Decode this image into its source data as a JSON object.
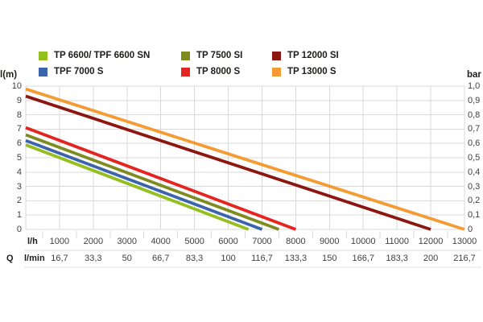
{
  "legend": {
    "items": [
      {
        "label": "TP 6600/ TPF 6600 SN",
        "color": "#93c01f"
      },
      {
        "label": "TPF 7000 S",
        "color": "#3c64ad"
      },
      {
        "label": "TP 7500 SI",
        "color": "#7d8b1f"
      },
      {
        "label": "TP 8000 S",
        "color": "#e5231f"
      },
      {
        "label": "TP 12000 SI",
        "color": "#8c1711"
      },
      {
        "label": "TP 13000 S",
        "color": "#f59b33"
      }
    ]
  },
  "chart_data": {
    "type": "line",
    "title": "",
    "grid": true,
    "grid_color": "#d9d9d9",
    "y_axis_left": {
      "label": "l(m)",
      "ticks": [
        "10",
        "9",
        "8",
        "7",
        "6",
        "5",
        "4",
        "3",
        "2",
        "1",
        "0"
      ],
      "range": [
        0,
        10
      ]
    },
    "y_axis_right": {
      "label": "bar",
      "ticks": [
        "1,0",
        "0,9",
        "0,8",
        "0,7",
        "0,6",
        "0,5",
        "0,4",
        "0,3",
        "0,2",
        "0,1",
        "0"
      ],
      "range": [
        0,
        1
      ]
    },
    "x_axis": {
      "unit_top": "l/h",
      "q_label": "Q",
      "unit_bottom": "l/min",
      "range_lh": [
        0,
        13000
      ],
      "ticks_lh": [
        "1000",
        "2000",
        "3000",
        "4000",
        "5000",
        "6000",
        "7000",
        "8000",
        "9000",
        "10000",
        "11000",
        "12000",
        "13000"
      ],
      "ticks_lmin": [
        "16,7",
        "33,3",
        "50",
        "66,7",
        "83,3",
        "100",
        "116,7",
        "133,3",
        "150",
        "166,7",
        "183,3",
        "200",
        "216,7"
      ]
    },
    "series": [
      {
        "name": "TP 13000 S",
        "color": "#f59b33",
        "max_head_m": 9.8,
        "max_flow_lh": 13000,
        "points": [
          [
            0,
            9.8
          ],
          [
            13000,
            0
          ]
        ]
      },
      {
        "name": "TP 12000 SI",
        "color": "#8c1711",
        "max_head_m": 9.3,
        "max_flow_lh": 12000,
        "points": [
          [
            0,
            9.3
          ],
          [
            12000,
            0
          ]
        ]
      },
      {
        "name": "TP 8000 S",
        "color": "#e5231f",
        "max_head_m": 7.1,
        "max_flow_lh": 8000,
        "points": [
          [
            0,
            7.1
          ],
          [
            8000,
            0
          ]
        ]
      },
      {
        "name": "TP 7500 SI",
        "color": "#7d8b1f",
        "max_head_m": 6.6,
        "max_flow_lh": 7500,
        "points": [
          [
            0,
            6.6
          ],
          [
            7500,
            0
          ]
        ]
      },
      {
        "name": "TPF 7000 S",
        "color": "#3c64ad",
        "max_head_m": 6.2,
        "max_flow_lh": 7000,
        "points": [
          [
            0,
            6.2
          ],
          [
            7000,
            0
          ]
        ]
      },
      {
        "name": "TP 6600/ TPF 6600 SN",
        "color": "#93c01f",
        "max_head_m": 5.9,
        "max_flow_lh": 6600,
        "points": [
          [
            0,
            5.9
          ],
          [
            6600,
            0
          ]
        ]
      }
    ]
  }
}
